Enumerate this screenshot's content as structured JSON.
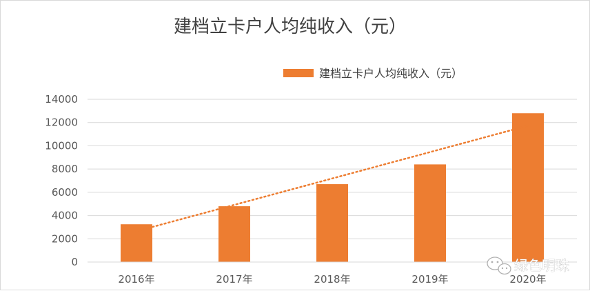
{
  "chart_data": {
    "type": "bar",
    "title": "建档立卡户人均纯收入（元）",
    "categories": [
      "2016年",
      "2017年",
      "2018年",
      "2019年",
      "2020年"
    ],
    "series": [
      {
        "name": "建档立卡户人均纯收入（元）",
        "values": [
          3250,
          4800,
          6700,
          8400,
          12800
        ],
        "color": "#ed7d31"
      }
    ],
    "trendline": {
      "type": "linear",
      "style": "dotted",
      "color": "#ed7d31"
    },
    "ylim": [
      0,
      14000
    ],
    "yticks": [
      0,
      2000,
      4000,
      6000,
      8000,
      10000,
      12000,
      14000
    ],
    "grid": true,
    "legend": "top"
  },
  "watermark": {
    "text": "绿色明珠",
    "icon": "wechat-icon"
  }
}
